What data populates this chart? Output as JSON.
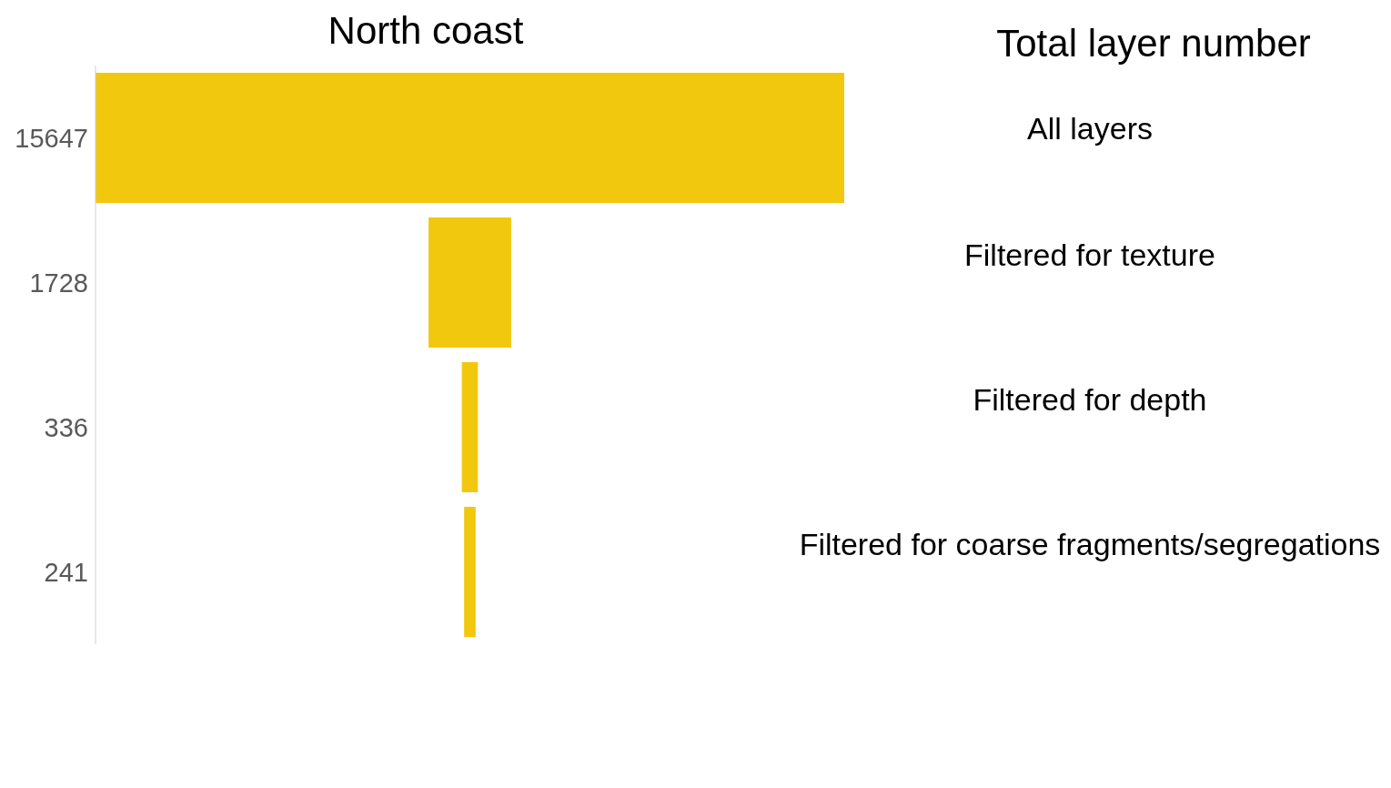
{
  "chart_data": {
    "type": "other",
    "title": "North coast",
    "categories": [
      "All layers",
      "Filtered for texture",
      "Filtered for depth",
      "Filtered for coarse fragments/segregations"
    ],
    "values": [
      15647,
      1728,
      336,
      241
    ],
    "color": "#f2c80f",
    "data_labels": true,
    "annotations": [
      "Total layer number"
    ]
  }
}
